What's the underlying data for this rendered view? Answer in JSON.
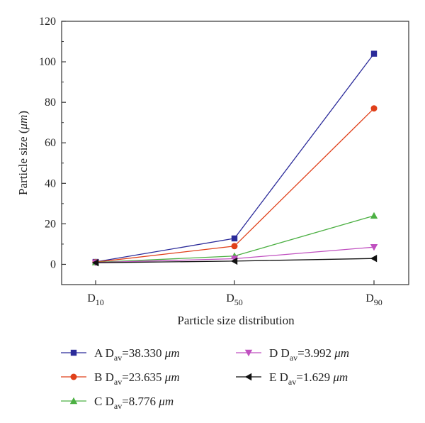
{
  "chart_data": {
    "type": "line",
    "xlabel": "Particle size distribution",
    "ylabel": {
      "prefix": "Particle size (",
      "unit": "μm",
      "suffix": ")"
    },
    "categories": [
      {
        "main": "D",
        "sub": "10"
      },
      {
        "main": "D",
        "sub": "50"
      },
      {
        "main": "D",
        "sub": "90"
      }
    ],
    "ylim": [
      -10,
      120
    ],
    "yticks": [
      "0",
      "20",
      "40",
      "60",
      "80",
      "100",
      "120"
    ],
    "grid": false,
    "legend_position": "bottom",
    "series": [
      {
        "letter": "A",
        "value": "=38.330",
        "unit": "μm",
        "values": [
          1.2,
          12.8,
          104.0
        ],
        "color": "#2b2b9a",
        "marker": "square"
      },
      {
        "letter": "B",
        "value": "=23.635",
        "unit": "μm",
        "values": [
          1.1,
          9.0,
          77.0
        ],
        "color": "#e0401a",
        "marker": "circle"
      },
      {
        "letter": "C",
        "value": "=8.776",
        "unit": "μm",
        "values": [
          1.0,
          4.1,
          24.0
        ],
        "color": "#4cb043",
        "marker": "triangle-up"
      },
      {
        "letter": "D",
        "value": "=3.992",
        "unit": "μm",
        "values": [
          0.9,
          2.8,
          8.5
        ],
        "color": "#c050c0",
        "marker": "triangle-down"
      },
      {
        "letter": "E",
        "value": "=1.629",
        "unit": "μm",
        "values": [
          0.8,
          1.6,
          2.9
        ],
        "color": "#111111",
        "marker": "triangle-left"
      }
    ],
    "legend_label": {
      "symbol": "D",
      "sub": "av"
    }
  }
}
